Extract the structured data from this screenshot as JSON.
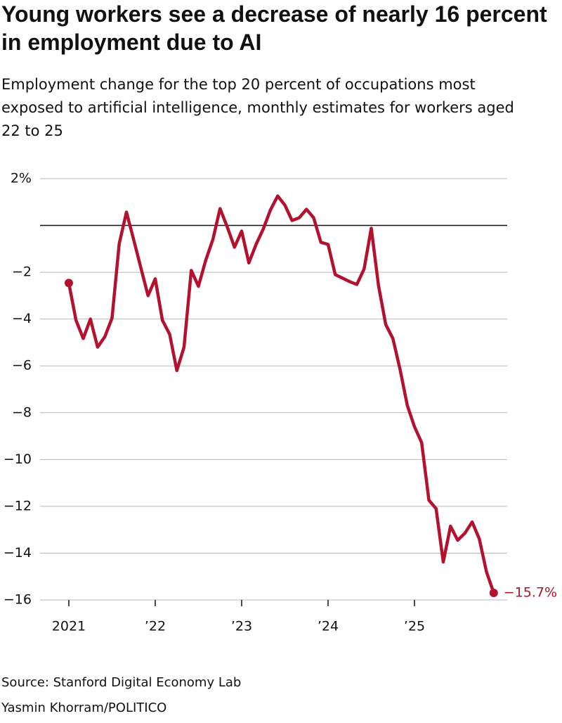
{
  "chart_data": {
    "type": "line",
    "title": "Young workers see a decrease of nearly 16 percent in employment due to AI",
    "subtitle": "Employment change for the top 20 percent of occupations most exposed to artificial intelligence, monthly estimates for workers aged 22 to 25",
    "source": "Source: Stanford Digital Economy Lab",
    "credit": "Yasmin Khorram/POLITICO",
    "x": [
      2021,
      2021.083,
      2021.167,
      2021.25,
      2021.333,
      2021.417,
      2021.5,
      2021.583,
      2021.667,
      2021.75,
      2021.833,
      2021.917,
      2022,
      2022.083,
      2022.167,
      2022.25,
      2022.333,
      2022.417,
      2022.5,
      2022.583,
      2022.667,
      2022.75,
      2022.833,
      2022.917,
      2023,
      2023.083,
      2023.167,
      2023.25,
      2023.333,
      2023.417,
      2023.5,
      2023.583,
      2023.667,
      2023.75,
      2023.833,
      2023.917,
      2024,
      2024.083,
      2024.167,
      2024.25,
      2024.333,
      2024.417,
      2024.5,
      2024.583,
      2024.667,
      2024.75,
      2024.833,
      2024.917,
      2025,
      2025.083,
      2025.167,
      2025.25,
      2025.333,
      2025.417,
      2025.5,
      2025.583,
      2025.667,
      2025.75,
      2025.833,
      2025.917
    ],
    "series": [
      {
        "color": "#b3112e",
        "values": [
          -2.46,
          -4.05,
          -4.83,
          -4.0,
          -5.2,
          -4.75,
          -3.96,
          -0.78,
          0.57,
          -0.6,
          -1.8,
          -3.0,
          -2.28,
          -4.05,
          -4.65,
          -6.2,
          -5.2,
          -1.92,
          -2.6,
          -1.5,
          -0.6,
          0.72,
          -0.06,
          -0.93,
          -0.24,
          -1.6,
          -0.81,
          -0.15,
          0.66,
          1.26,
          0.87,
          0.21,
          0.33,
          0.69,
          0.33,
          -0.72,
          -0.81,
          -2.1,
          -2.25,
          -2.4,
          -2.52,
          -1.86,
          -0.12,
          -2.55,
          -4.23,
          -4.83,
          -6.15,
          -7.69,
          -8.6,
          -9.28,
          -11.74,
          -12.1,
          -14.38,
          -12.85,
          -13.45,
          -13.15,
          -12.67,
          -13.39,
          -14.8,
          -15.7
        ],
        "value_labels": [
          null,
          null,
          null,
          null,
          null,
          null,
          null,
          null,
          null,
          null,
          null,
          null,
          null,
          null,
          null,
          null,
          null,
          null,
          null,
          null,
          null,
          null,
          null,
          null,
          null,
          null,
          null,
          null,
          null,
          null,
          null,
          null,
          null,
          null,
          null,
          null,
          null,
          null,
          null,
          null,
          null,
          null,
          null,
          null,
          null,
          null,
          null,
          null,
          null,
          null,
          null,
          null,
          null,
          null,
          null,
          null,
          null,
          null,
          null,
          "−15.7%"
        ]
      }
    ],
    "xlim": [
      2020.667,
      2026.073
    ],
    "xticks": [
      2021,
      {
        "value": 2022,
        "label": "’22"
      },
      {
        "value": 2023,
        "label": "’23"
      },
      {
        "value": 2024,
        "label": "’24"
      },
      {
        "value": 2025,
        "label": "’25"
      }
    ],
    "ylim": [
      -16,
      2
    ],
    "yticks": [
      {
        "value": 2,
        "label": "2%"
      },
      {
        "value": -2,
        "label": "−2"
      },
      {
        "value": -4,
        "label": "−4"
      },
      {
        "value": -6,
        "label": "−6"
      },
      {
        "value": -8,
        "label": "−8"
      },
      {
        "value": -10,
        "label": "−10"
      },
      {
        "value": -12,
        "label": "−12"
      },
      {
        "value": -14,
        "label": "−14"
      },
      {
        "value": -16,
        "label": "−16"
      }
    ],
    "grid": true,
    "zero_line": true,
    "endpoint_markers": true
  }
}
